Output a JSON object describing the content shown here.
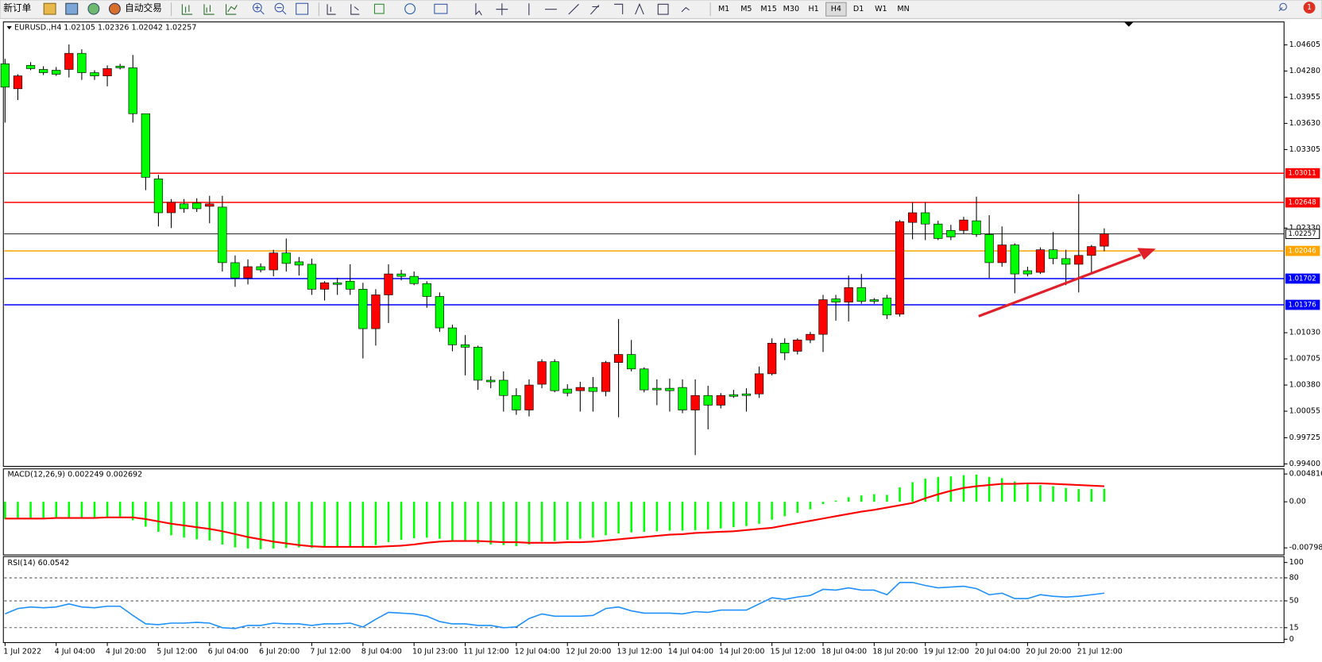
{
  "toolbar": {
    "new_order": "新订单",
    "auto_trading": "自动交易",
    "timeframes": [
      "M1",
      "M5",
      "M15",
      "M30",
      "H1",
      "H4",
      "D1",
      "W1",
      "MN"
    ],
    "selected": 5,
    "notifications": "1"
  },
  "chart_data": [
    {
      "type": "candlestick",
      "header": "EURUSD.,H4  1.02105 1.02326 1.02042 1.02257",
      "up_color": "#ff0000",
      "down_color": "#00ff00",
      "categories": [
        "1 Jul 2022",
        null,
        null,
        null,
        "4 Jul 04:00",
        null,
        null,
        null,
        "4 Jul 20:00",
        null,
        null,
        null,
        "5 Jul 12:00",
        null,
        null,
        null,
        "6 Jul 04:00",
        null,
        null,
        null,
        "6 Jul 20:00",
        null,
        null,
        null,
        "7 Jul 12:00",
        null,
        null,
        null,
        "8 Jul 04:00",
        null,
        null,
        null,
        "10 Jul 23:00",
        null,
        null,
        null,
        "11 Jul 12:00",
        null,
        null,
        null,
        "12 Jul 04:00",
        null,
        null,
        null,
        "12 Jul 20:00",
        null,
        null,
        null,
        "13 Jul 12:00",
        null,
        null,
        null,
        "14 Jul 04:00",
        null,
        null,
        null,
        "14 Jul 20:00",
        null,
        null,
        null,
        "15 Jul 12:00",
        null,
        null,
        null,
        "18 Jul 04:00",
        null,
        null,
        null,
        "18 Jul 20:00",
        null,
        null,
        null,
        "19 Jul 12:00",
        null,
        null,
        null,
        "20 Jul 04:00",
        null,
        null,
        null,
        "20 Jul 20:00",
        null,
        null,
        null,
        "21 Jul 12:00",
        null,
        null
      ],
      "open": [
        1.0437,
        1.0406,
        1.0435,
        1.043,
        1.0429,
        1.043,
        1.045,
        1.0426,
        1.0422,
        1.0434,
        1.0432,
        1.0375,
        1.0294,
        1.0252,
        1.0263,
        1.0264,
        1.026,
        1.0259,
        1.019,
        1.0171,
        1.0185,
        1.0181,
        1.0202,
        1.0191,
        1.0188,
        1.0157,
        1.0165,
        1.0167,
        1.0157,
        1.0108,
        1.015,
        1.0176,
        1.0173,
        1.0164,
        1.0148,
        1.0109,
        1.0088,
        1.0085,
        1.0044,
        1.0044,
        1.0025,
        1.0007,
        1.0039,
        1.0067,
        1.0033,
        1.0031,
        1.0035,
        1.003,
        1.0066,
        1.0076,
        1.0058,
        1.0034,
        1.0034,
        1.0035,
        1.0007,
        1.0025,
        1.0013,
        1.0026,
        1.0027,
        1.0027,
        1.0052,
        1.009,
        1.008,
        1.0094,
        1.0101,
        1.0145,
        1.0141,
        1.0159,
        1.0144,
        1.0146,
        1.0126,
        1.024,
        1.0252,
        1.0238,
        1.023,
        1.023,
        1.0242,
        1.0225,
        1.019,
        1.0212,
        1.018,
        1.0178,
        1.0206,
        1.0195,
        1.0188,
        1.0199,
        1.02105
      ],
      "high": [
        1.0443,
        1.0424,
        1.0439,
        1.0434,
        1.0433,
        1.0461,
        1.0455,
        1.0429,
        1.0435,
        1.0437,
        1.0448,
        1.0375,
        1.0299,
        1.0269,
        1.0269,
        1.027,
        1.0273,
        1.0273,
        1.0199,
        1.0194,
        1.0189,
        1.0206,
        1.022,
        1.0197,
        1.0195,
        1.0167,
        1.0171,
        1.0188,
        1.0165,
        1.0157,
        1.0188,
        1.0181,
        1.0179,
        1.0167,
        1.0153,
        1.0113,
        1.01,
        1.0087,
        1.0049,
        1.0055,
        1.0034,
        1.0045,
        1.007,
        1.007,
        1.0039,
        1.0042,
        1.0048,
        1.0068,
        1.012,
        1.0094,
        1.006,
        1.0045,
        1.0046,
        1.0045,
        1.0045,
        1.0037,
        1.0028,
        1.0032,
        1.0034,
        1.0061,
        1.0096,
        1.0096,
        1.0096,
        1.0104,
        1.015,
        1.015,
        1.0174,
        1.0176,
        1.0146,
        1.015,
        1.0243,
        1.0265,
        1.0265,
        1.0242,
        1.0237,
        1.0247,
        1.0272,
        1.0249,
        1.0235,
        1.0214,
        1.0185,
        1.0209,
        1.0228,
        1.0206,
        1.0275,
        1.0212,
        1.02326
      ],
      "low": [
        1.0364,
        1.0392,
        1.0429,
        1.0423,
        1.0422,
        1.042,
        1.0417,
        1.0417,
        1.0409,
        1.043,
        1.0364,
        1.028,
        1.0235,
        1.0233,
        1.0252,
        1.0253,
        1.0239,
        1.0179,
        1.016,
        1.0163,
        1.0178,
        1.0173,
        1.0179,
        1.0174,
        1.015,
        1.0143,
        1.015,
        1.015,
        1.0071,
        1.0087,
        1.0115,
        1.0168,
        1.0162,
        1.0134,
        1.0104,
        1.008,
        1.005,
        1.0032,
        1.0034,
        1.0005,
        1.0001,
        0.9999,
        1.0034,
        1.0029,
        1.0024,
        1.0005,
        1.0005,
        1.0024,
        0.9998,
        1.0055,
        1.0029,
        1.0013,
        1.0005,
        1.0003,
        0.9951,
        0.9983,
        1.0009,
        1.0022,
        1.0005,
        1.0022,
        1.005,
        1.0069,
        1.0076,
        1.009,
        1.0079,
        1.0118,
        1.0117,
        1.0139,
        1.0139,
        1.012,
        1.0123,
        1.0219,
        1.0218,
        1.0218,
        1.0218,
        1.0226,
        1.0222,
        1.0171,
        1.0185,
        1.0152,
        1.0173,
        1.0176,
        1.0188,
        1.0162,
        1.0153,
        1.0176,
        1.02042
      ],
      "close": [
        1.0408,
        1.0422,
        1.0431,
        1.0426,
        1.0424,
        1.045,
        1.0426,
        1.0422,
        1.0431,
        1.0432,
        1.0375,
        1.0296,
        1.0252,
        1.0265,
        1.0257,
        1.0257,
        1.0263,
        1.019,
        1.0171,
        1.0185,
        1.0181,
        1.0202,
        1.0189,
        1.0187,
        1.0157,
        1.0165,
        1.0163,
        1.0157,
        1.0108,
        1.015,
        1.0176,
        1.0173,
        1.0164,
        1.0148,
        1.0109,
        1.0088,
        1.0085,
        1.0044,
        1.0042,
        1.0025,
        1.0007,
        1.0038,
        1.0067,
        1.0031,
        1.0028,
        1.0035,
        1.003,
        1.0066,
        1.0076,
        1.0058,
        1.0032,
        1.0032,
        1.0031,
        1.0007,
        1.0025,
        1.0013,
        1.0025,
        1.0024,
        1.0025,
        1.0052,
        1.009,
        1.0078,
        1.0094,
        1.0101,
        1.0144,
        1.0141,
        1.0159,
        1.0142,
        1.0142,
        1.0125,
        1.0241,
        1.0252,
        1.0238,
        1.022,
        1.0222,
        1.0243,
        1.0225,
        1.019,
        1.0212,
        1.0176,
        1.0176,
        1.0206,
        1.0195,
        1.0188,
        1.0199,
        1.021,
        1.02257
      ],
      "hlines": [
        {
          "value": 1.03011,
          "color": "#ff0000"
        },
        {
          "value": 1.02648,
          "color": "#ff0000"
        },
        {
          "value": 1.02257,
          "color": "#000000"
        },
        {
          "value": 1.02046,
          "color": "#ffa500"
        },
        {
          "value": 1.01702,
          "color": "#0000ff"
        },
        {
          "value": 1.01376,
          "color": "#0000ff"
        }
      ],
      "ylim": [
        0.9937,
        1.0489
      ],
      "yticks": [
        1.04605,
        {
          "value": 1.0428,
          "label": "1.04280"
        },
        1.03955,
        {
          "value": 1.0363,
          "label": "1.03630"
        },
        1.03305,
        {
          "value": 1.0233,
          "label": "1.02330"
        },
        {
          "value": 1.0103,
          "label": "1.01030"
        },
        1.00705,
        {
          "value": 1.0038,
          "label": "1.00380"
        },
        1.00055,
        0.99725,
        {
          "value": 0.994,
          "label": "0.99400"
        }
      ]
    },
    {
      "type": "macd",
      "header": "MACD(12,26,9) 0.002249 0.002692",
      "series": [
        {
          "style": "histogram",
          "color": "#00ff00",
          "values": [
            -0.003,
            -0.003,
            -0.0029,
            -0.0029,
            -0.0029,
            -0.0027,
            -0.0027,
            -0.0027,
            -0.0027,
            -0.0027,
            -0.0032,
            -0.0043,
            -0.0052,
            -0.0058,
            -0.0062,
            -0.0065,
            -0.0067,
            -0.0074,
            -0.0079,
            -0.0081,
            -0.0082,
            -0.0081,
            -0.008,
            -0.0079,
            -0.008,
            -0.0079,
            -0.0078,
            -0.0077,
            -0.0078,
            -0.0075,
            -0.007,
            -0.0066,
            -0.0063,
            -0.0062,
            -0.0064,
            -0.0067,
            -0.0069,
            -0.0072,
            -0.0074,
            -0.0075,
            -0.0077,
            -0.0074,
            -0.0069,
            -0.0068,
            -0.0066,
            -0.0064,
            -0.0062,
            -0.0058,
            -0.0055,
            -0.0053,
            -0.0052,
            -0.0051,
            -0.005,
            -0.005,
            -0.0049,
            -0.0048,
            -0.0046,
            -0.0044,
            -0.0042,
            -0.0038,
            -0.0031,
            -0.0025,
            -0.0019,
            -0.0013,
            -0.0004,
            0.0002,
            0.0008,
            0.0011,
            0.0013,
            0.0012,
            0.0025,
            0.0034,
            0.004,
            0.0043,
            0.0044,
            0.0046,
            0.0047,
            0.0043,
            0.0041,
            0.0035,
            0.0031,
            0.0029,
            0.0027,
            0.0024,
            0.0022,
            0.0022,
            0.002249
          ]
        },
        {
          "style": "line",
          "color": "#ff0000",
          "values": [
            -0.0029,
            -0.0029,
            -0.0029,
            -0.0029,
            -0.0028,
            -0.0028,
            -0.0028,
            -0.0028,
            -0.0027,
            -0.0027,
            -0.0027,
            -0.003,
            -0.0034,
            -0.0038,
            -0.0041,
            -0.0044,
            -0.0047,
            -0.0051,
            -0.0056,
            -0.0061,
            -0.0065,
            -0.0069,
            -0.0072,
            -0.0075,
            -0.0077,
            -0.0078,
            -0.0078,
            -0.0078,
            -0.0078,
            -0.0078,
            -0.0077,
            -0.0076,
            -0.0074,
            -0.0071,
            -0.0069,
            -0.0068,
            -0.0068,
            -0.0068,
            -0.0069,
            -0.007,
            -0.007,
            -0.0071,
            -0.0071,
            -0.0071,
            -0.007,
            -0.007,
            -0.0069,
            -0.0067,
            -0.0065,
            -0.0063,
            -0.0061,
            -0.0059,
            -0.0057,
            -0.0056,
            -0.0054,
            -0.0053,
            -0.0052,
            -0.0051,
            -0.0049,
            -0.0047,
            -0.0045,
            -0.0041,
            -0.0037,
            -0.0033,
            -0.0029,
            -0.0025,
            -0.0021,
            -0.0017,
            -0.0014,
            -0.001,
            -0.0006,
            -0.0002,
            0.0006,
            0.0013,
            0.0019,
            0.0024,
            0.0027,
            0.0029,
            0.0031,
            0.0031,
            0.0032,
            0.0032,
            0.0031,
            0.003,
            0.0029,
            0.0028,
            0.002692
          ]
        }
      ],
      "ylim": [
        -0.0092,
        0.0057
      ],
      "yticks": [
        0.004816,
        {
          "value": 0,
          "label": "0.00"
        },
        -0.007984
      ]
    },
    {
      "type": "line",
      "header": "RSI(14) 60.0542",
      "series": [
        {
          "color": "#1e90ff",
          "values": [
            33,
            40,
            42,
            41,
            42,
            46,
            42,
            41,
            43,
            43,
            31,
            20,
            19,
            21,
            21,
            22,
            21,
            15,
            14,
            18,
            18,
            21,
            20,
            20,
            18,
            20,
            20,
            21,
            16,
            26,
            35,
            34,
            33,
            30,
            23,
            20,
            20,
            18,
            18,
            15,
            16,
            27,
            33,
            30,
            30,
            30,
            31,
            40,
            42,
            37,
            34,
            34,
            34,
            33,
            36,
            35,
            38,
            38,
            38,
            46,
            54,
            52,
            55,
            57,
            65,
            64,
            67,
            64,
            64,
            58,
            74,
            74,
            70,
            67,
            68,
            69,
            66,
            58,
            60,
            53,
            53,
            58,
            56,
            55,
            56,
            58,
            60.0542
          ]
        }
      ],
      "levels": [
        80,
        50,
        15
      ],
      "ylim": [
        -4.4,
        107.7
      ],
      "yticks": [
        100,
        80,
        50,
        15,
        0
      ]
    }
  ]
}
